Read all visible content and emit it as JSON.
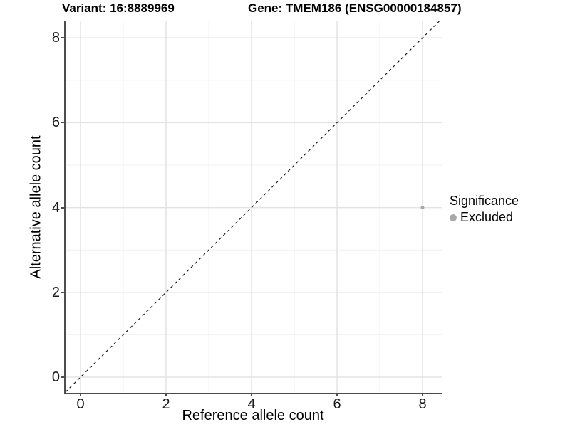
{
  "chart_data": {
    "type": "scatter",
    "title_left": "Variant: 16:8889969",
    "title_right": "Gene: TMEM186 (ENSG00000184857)",
    "xlabel": "Reference allele count",
    "ylabel": "Alternative allele count",
    "xlim": [
      -0.35,
      8.45
    ],
    "ylim": [
      -0.37,
      8.39
    ],
    "x_major_ticks": [
      0,
      2,
      4,
      6,
      8
    ],
    "y_major_ticks": [
      0,
      2,
      4,
      6,
      8
    ],
    "x_minor_ticks": [
      1,
      3,
      5,
      7
    ],
    "y_minor_ticks": [
      1,
      3,
      5,
      7
    ],
    "grid": "on",
    "points": [
      {
        "x": 8,
        "y": 4,
        "series": "Excluded"
      }
    ],
    "identity_line": {
      "x1": -0.35,
      "y1": -0.35,
      "x2": 8.39,
      "y2": 8.39,
      "style": "dashed"
    },
    "legend": {
      "title": "Significance",
      "position": "right",
      "items": [
        {
          "label": "Excluded",
          "color": "#a8a8a8"
        }
      ]
    },
    "colors": {
      "point": "#a8a8a8",
      "axis_line": "#4d4d4d",
      "grid_major": "#e3e3e3",
      "grid_minor": "#f0f0f0",
      "identity_line": "#1a1a1a",
      "background": "#ffffff"
    }
  }
}
